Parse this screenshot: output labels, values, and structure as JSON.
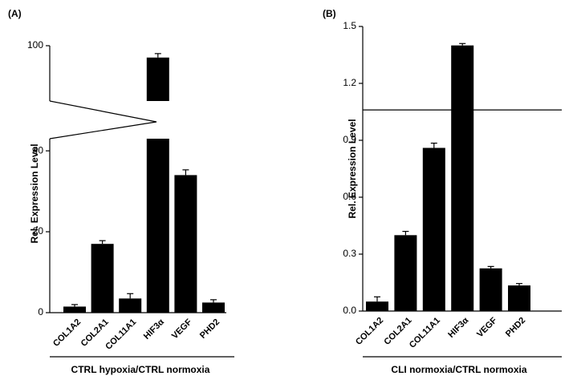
{
  "chart_data": [
    {
      "type": "bar",
      "panel_label": "(A)",
      "y_label": "Rel. Expression Level",
      "x_label": "CTRL hypoxia/CTRL normoxia",
      "categories": [
        "COL1A2",
        "COL2A1",
        "COL11A1",
        "HIF3α",
        "VEGF",
        "PHD2"
      ],
      "values": [
        1.5,
        17,
        3.5,
        97,
        34,
        2.5
      ],
      "errors": [
        0.5,
        0.8,
        1.2,
        1,
        1.3,
        0.7
      ],
      "color": "#000000",
      "ylim": [
        0,
        43
      ],
      "yticks": [
        0,
        20,
        40
      ],
      "upper_ylim": [
        86,
        100
      ],
      "upper_yticks": [
        100
      ],
      "axis_break": true
    },
    {
      "type": "bar",
      "panel_label": "(B)",
      "y_label": "Rel. Expression Level",
      "x_label": "CLI normoxia/CTRL normoxia",
      "categories": [
        "COL1A2",
        "COL2A1",
        "COL11A1",
        "HIF3α",
        "VEGF",
        "PHD2"
      ],
      "values": [
        0.05,
        0.4,
        0.86,
        1.4,
        0.225,
        0.135
      ],
      "errors": [
        0.025,
        0.02,
        0.025,
        0.01,
        0.01,
        0.01
      ],
      "color": "#000000",
      "ylim": [
        0,
        1.5
      ],
      "yticks": [
        {
          "value": 0,
          "label": "0.0"
        },
        0.3,
        0.6,
        0.9,
        1.2,
        1.5
      ],
      "hline": 1.06
    }
  ]
}
